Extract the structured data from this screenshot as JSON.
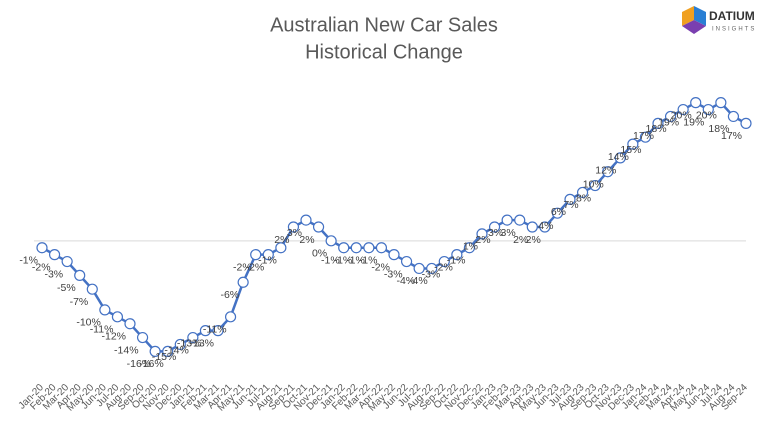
{
  "chart_data": {
    "type": "line",
    "title": "Australian New Car Sales",
    "subtitle": "Historical Change",
    "logo": {
      "name": "DATIUM",
      "tagline": "INSIGHTS"
    },
    "categories": [
      "Jan-20",
      "Feb-20",
      "Mar-20",
      "Apr-20",
      "May-20",
      "Jun-20",
      "Jul-20",
      "Aug-20",
      "Sep-20",
      "Oct-20",
      "Nov-20",
      "Dec-20",
      "Jan-21",
      "Feb-21",
      "Mar-21",
      "Apr-21",
      "May-21",
      "Jun-21",
      "Jul-21",
      "Aug-21",
      "Sep-21",
      "Oct-21",
      "Nov-21",
      "Dec-21",
      "Jan-22",
      "Feb-22",
      "Mar-22",
      "Apr-22",
      "May-22",
      "Jun-22",
      "Jul-22",
      "Aug-22",
      "Sep-22",
      "Oct-22",
      "Nov-22",
      "Dec-22",
      "Jan-23",
      "Feb-23",
      "Mar-23",
      "Apr-23",
      "May-23",
      "Jun-23",
      "Jul-23",
      "Aug-23",
      "Sep-23",
      "Oct-23",
      "Nov-23",
      "Dec-23",
      "Jan-24",
      "Feb-24",
      "Mar-24",
      "Apr-24",
      "May-24",
      "Jun-24",
      "Jul-24",
      "Aug-24",
      "Sep-24"
    ],
    "values": [
      -1,
      -2,
      -3,
      -5,
      -7,
      -10,
      -11,
      -12,
      -14,
      -16,
      -16,
      -15,
      -14,
      -13,
      -13,
      -11,
      -6,
      -2,
      -2,
      -1,
      2,
      3,
      2,
      0,
      -1,
      -1,
      -1,
      -1,
      -2,
      -3,
      -4,
      -4,
      -3,
      -2,
      -1,
      1,
      2,
      3,
      3,
      2,
      2,
      4,
      6,
      7,
      8,
      10,
      12,
      14,
      15,
      17,
      18,
      19,
      20,
      19,
      20,
      18,
      17
    ],
    "value_labels": [
      "-1%",
      "-2%",
      "-3%",
      "-5%",
      "-7%",
      "-10%",
      "-11%",
      "-12%",
      "-14%",
      "-16%",
      "-16%",
      "-15%",
      "-14%",
      "-13%",
      "-13%",
      "-11%",
      "-6%",
      "-2%",
      "-2%",
      "-1%",
      "2%",
      "3%",
      "2%",
      "0%",
      "-1%",
      "-1%",
      "-1%",
      "-1%",
      "-2%",
      "-3%",
      "-4%",
      "-4%",
      "-3%",
      "-2%",
      "-1%",
      "1%",
      "2%",
      "3%",
      "3%",
      "2%",
      "2%",
      "4%",
      "6%",
      "7%",
      "8%",
      "10%",
      "12%",
      "14%",
      "15%",
      "17%",
      "18%",
      "19%",
      "20%",
      "19%",
      "20%",
      "18%",
      "17%"
    ],
    "color": "#4472c4",
    "ylim": [
      -20,
      24
    ]
  }
}
